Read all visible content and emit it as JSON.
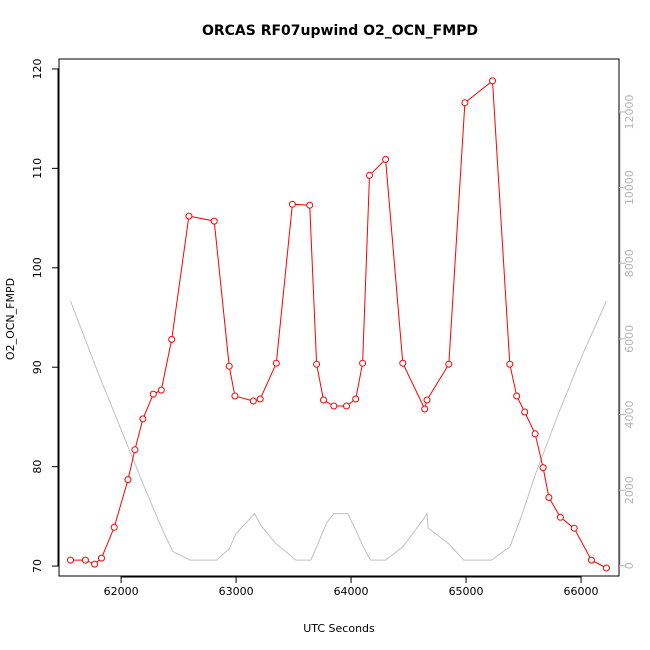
{
  "chart_data": {
    "type": "line",
    "title": "ORCAS RF07upwind O2_OCN_FMPD",
    "xlabel": "UTC Seconds",
    "ylabel": "O2_OCN_FMPD",
    "xlim": [
      61460,
      66330
    ],
    "ylim": [
      69,
      121
    ],
    "y2lim": [
      -270,
      13400
    ],
    "xticks": [
      62000,
      63000,
      64000,
      65000,
      66000
    ],
    "yticks": [
      70,
      80,
      90,
      100,
      110,
      120
    ],
    "y2ticks": [
      0,
      2000,
      4000,
      6000,
      8000,
      10000,
      12000
    ],
    "grid": false,
    "legend": "none",
    "colors": {
      "primary": "#ff0000",
      "secondary": "#c0c0c0",
      "frame": "#000000"
    },
    "series": [
      {
        "axis": "left",
        "style": "line+points",
        "color": "#ff0000",
        "x": [
          61560,
          61690,
          61770,
          61830,
          61940,
          62060,
          62120,
          62190,
          62280,
          62350,
          62440,
          62590,
          62810,
          62940,
          62990,
          63150,
          63210,
          63350,
          63490,
          63640,
          63700,
          63760,
          63850,
          63960,
          64040,
          64100,
          64160,
          64300,
          64450,
          64640,
          64660,
          64850,
          64990,
          65230,
          65380,
          65440,
          65510,
          65600,
          65670,
          65720,
          65820,
          65940,
          66090,
          66220
        ],
        "y": [
          70.6,
          70.6,
          70.2,
          70.8,
          73.9,
          78.7,
          81.7,
          84.8,
          87.3,
          87.7,
          92.8,
          105.2,
          104.7,
          90.1,
          87.1,
          86.6,
          86.8,
          90.4,
          106.4,
          106.3,
          90.3,
          86.7,
          86.1,
          86.1,
          86.8,
          90.4,
          109.3,
          110.9,
          90.4,
          85.8,
          86.7,
          90.3,
          116.6,
          118.8,
          90.3,
          87.1,
          85.5,
          83.3,
          79.9,
          76.9,
          74.9,
          73.8,
          70.6,
          69.8
        ]
      },
      {
        "axis": "right",
        "style": "line",
        "color": "#c0c0c0",
        "x": [
          61560,
          61800,
          62000,
          62200,
          62360,
          62450,
          62600,
          62830,
          62940,
          63000,
          63160,
          63220,
          63350,
          63520,
          63650,
          63700,
          63790,
          63850,
          63970,
          64040,
          64110,
          64170,
          64300,
          64450,
          64620,
          64660,
          64670,
          64850,
          64980,
          65220,
          65380,
          65480,
          65600,
          65800,
          66000,
          66220
        ],
        "y": [
          7000,
          5100,
          3600,
          2100,
          950,
          380,
          150,
          150,
          450,
          850,
          1380,
          1050,
          580,
          150,
          150,
          500,
          1150,
          1380,
          1380,
          950,
          480,
          150,
          150,
          500,
          1200,
          1380,
          1000,
          580,
          150,
          150,
          500,
          1300,
          2400,
          4000,
          5500,
          7000
        ]
      }
    ]
  }
}
